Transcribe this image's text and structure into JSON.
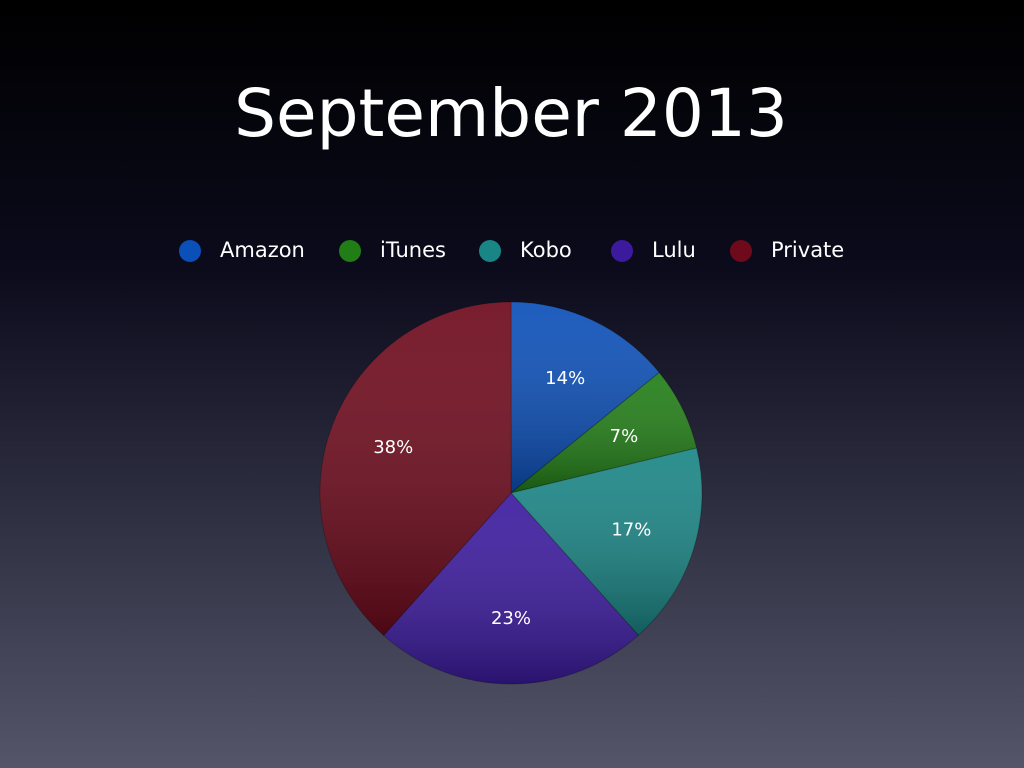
{
  "chart_data": {
    "type": "pie",
    "title": "September 2013",
    "categories": [
      "Amazon",
      "iTunes",
      "Kobo",
      "Lulu",
      "Private"
    ],
    "values": [
      14,
      7,
      17,
      23,
      38
    ],
    "value_labels": [
      "14%",
      "7%",
      "17%",
      "23%",
      "38%"
    ],
    "colors": [
      "#0b4fb8",
      "#217d16",
      "#1a8585",
      "#3b1a9e",
      "#6e0a1c"
    ]
  }
}
